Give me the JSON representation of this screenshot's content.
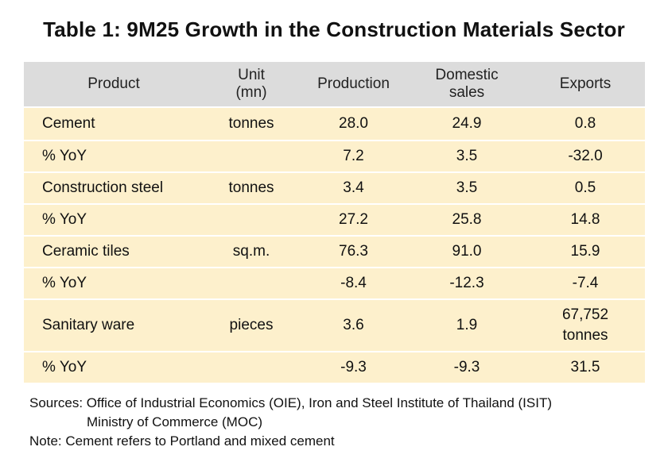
{
  "title": "Table 1: 9M25 Growth in the Construction Materials Sector",
  "table": {
    "headers": {
      "product": "Product",
      "unit_line1": "Unit",
      "unit_line2": "(mn)",
      "production": "Production",
      "domestic_line1": "Domestic",
      "domestic_line2": "sales",
      "exports": "Exports"
    },
    "rows": [
      {
        "product": "Cement",
        "unit": "tonnes",
        "production": "28.0",
        "domestic": "24.9",
        "exports_line1": "0.8",
        "exports_line2": ""
      },
      {
        "product": "% YoY",
        "unit": "",
        "production": "7.2",
        "domestic": "3.5",
        "exports_line1": "-32.0",
        "exports_line2": ""
      },
      {
        "product": "Construction steel",
        "unit": "tonnes",
        "production": "3.4",
        "domestic": "3.5",
        "exports_line1": "0.5",
        "exports_line2": ""
      },
      {
        "product": "% YoY",
        "unit": "",
        "production": "27.2",
        "domestic": "25.8",
        "exports_line1": "14.8",
        "exports_line2": ""
      },
      {
        "product": "Ceramic tiles",
        "unit": "sq.m.",
        "production": "76.3",
        "domestic": "91.0",
        "exports_line1": "15.9",
        "exports_line2": ""
      },
      {
        "product": "% YoY",
        "unit": "",
        "production": "-8.4",
        "domestic": "-12.3",
        "exports_line1": "-7.4",
        "exports_line2": ""
      },
      {
        "product": "Sanitary ware",
        "unit": "pieces",
        "production": "3.6",
        "domestic": "1.9",
        "exports_line1": "67,752",
        "exports_line2": "tonnes"
      },
      {
        "product": "% YoY",
        "unit": "",
        "production": "-9.3",
        "domestic": "-9.3",
        "exports_line1": "31.5",
        "exports_line2": ""
      }
    ]
  },
  "notes": {
    "sources_line1": "Sources: Office of Industrial Economics (OIE), Iron and Steel Institute of Thailand (ISIT)",
    "sources_line2": "Ministry of Commerce (MOC)",
    "note": "Note: Cement refers to Portland and mixed cement"
  },
  "colors": {
    "header_bg": "#dcdcdc",
    "row_bg": "#fdf0cc"
  }
}
